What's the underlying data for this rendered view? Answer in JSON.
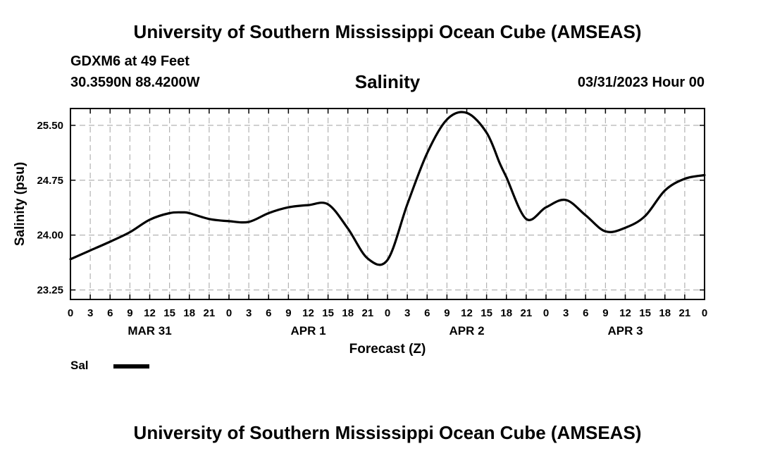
{
  "header": {
    "title": "University of Southern Mississippi Ocean Cube (AMSEAS)",
    "station": "GDXM6 at 49 Feet",
    "coords": "30.3590N  88.4200W",
    "chart_title": "Salinity",
    "run_time": "03/31/2023 Hour 00"
  },
  "footer": {
    "title": "University of Southern Mississippi Ocean Cube (AMSEAS)"
  },
  "legend": {
    "label": "Sal",
    "color": "#000000"
  },
  "chart_data": {
    "type": "line",
    "title": "Salinity",
    "xlabel": "Forecast (Z)",
    "ylabel": "Salinity (psu)",
    "xlim": [
      0,
      96
    ],
    "ylim": [
      23.12,
      25.73
    ],
    "x_tick_values": [
      0,
      3,
      6,
      9,
      12,
      15,
      18,
      21,
      24,
      27,
      30,
      33,
      36,
      39,
      42,
      45,
      48,
      51,
      54,
      57,
      60,
      63,
      66,
      69,
      72,
      75,
      78,
      81,
      84,
      87,
      90,
      93,
      96
    ],
    "x_tick_labels": [
      "0",
      "3",
      "6",
      "9",
      "12",
      "15",
      "18",
      "21",
      "0",
      "3",
      "6",
      "9",
      "12",
      "15",
      "18",
      "21",
      "0",
      "3",
      "6",
      "9",
      "12",
      "15",
      "18",
      "21",
      "0",
      "3",
      "6",
      "9",
      "12",
      "15",
      "18",
      "21",
      "0"
    ],
    "day_labels": [
      {
        "x": 12,
        "label": "MAR 31"
      },
      {
        "x": 36,
        "label": "APR 1"
      },
      {
        "x": 60,
        "label": "APR 2"
      },
      {
        "x": 84,
        "label": "APR 3"
      }
    ],
    "y_ticks": [
      23.25,
      24.0,
      24.75,
      25.5
    ],
    "y_tick_labels": [
      "23.25",
      "24.00",
      "24.75",
      "25.50"
    ],
    "grid": true,
    "series": [
      {
        "name": "Sal",
        "color": "#000000",
        "x": [
          0,
          3,
          6,
          9,
          12,
          15,
          17,
          18,
          21,
          24,
          27,
          30,
          33,
          36,
          39,
          42,
          45,
          48,
          51,
          54,
          57,
          60,
          63,
          65,
          66,
          69,
          72,
          75,
          78,
          81,
          84,
          87,
          90,
          93,
          96
        ],
        "values": [
          23.67,
          23.79,
          23.91,
          24.04,
          24.21,
          24.3,
          24.31,
          24.3,
          24.22,
          24.19,
          24.18,
          24.3,
          24.38,
          24.41,
          24.42,
          24.09,
          23.68,
          23.66,
          24.42,
          25.12,
          25.58,
          25.67,
          25.4,
          24.98,
          24.79,
          24.22,
          24.38,
          24.48,
          24.27,
          24.05,
          24.1,
          24.26,
          24.61,
          24.77,
          24.82
        ]
      }
    ]
  }
}
